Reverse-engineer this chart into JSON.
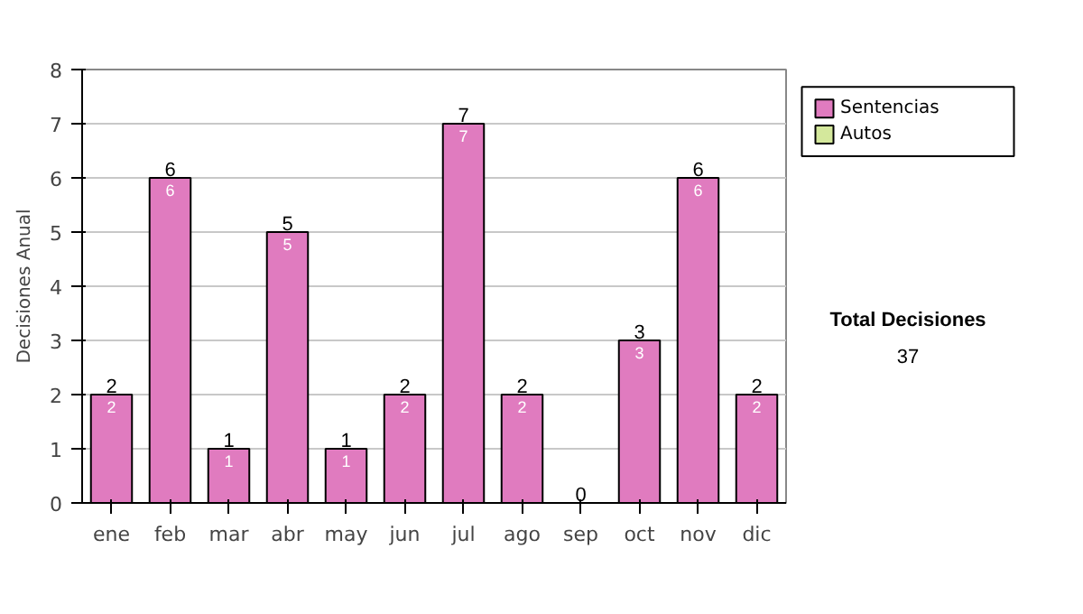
{
  "chart_data": {
    "type": "bar",
    "stacked": true,
    "ylabel": "Decisiones Anual",
    "categories": [
      "ene",
      "feb",
      "mar",
      "abr",
      "may",
      "jun",
      "jul",
      "ago",
      "sep",
      "oct",
      "nov",
      "dic"
    ],
    "series": [
      {
        "name": "Sentencias",
        "color": "#e07bbf",
        "values": [
          2,
          6,
          1,
          5,
          1,
          2,
          7,
          2,
          0,
          3,
          6,
          2
        ],
        "value_labels": [
          "2",
          "6",
          "1",
          "5",
          "1",
          "2",
          "7",
          "2",
          null,
          "3",
          "6",
          "2"
        ]
      },
      {
        "name": "Autos",
        "color": "#d4e89c",
        "values": [
          0,
          0,
          0,
          0,
          0,
          0,
          0,
          0,
          0,
          0,
          0,
          0
        ]
      }
    ],
    "totals": [
      "2",
      "6",
      "1",
      "5",
      "1",
      "2",
      "7",
      "2",
      "0",
      "3",
      "6",
      "2"
    ],
    "ylim": [
      0,
      8
    ],
    "yticks": [
      0,
      1,
      2,
      3,
      4,
      5,
      6,
      7,
      8
    ],
    "grid": "y",
    "legend": "right",
    "annotations": [
      "Total Decisiones",
      "37"
    ]
  }
}
